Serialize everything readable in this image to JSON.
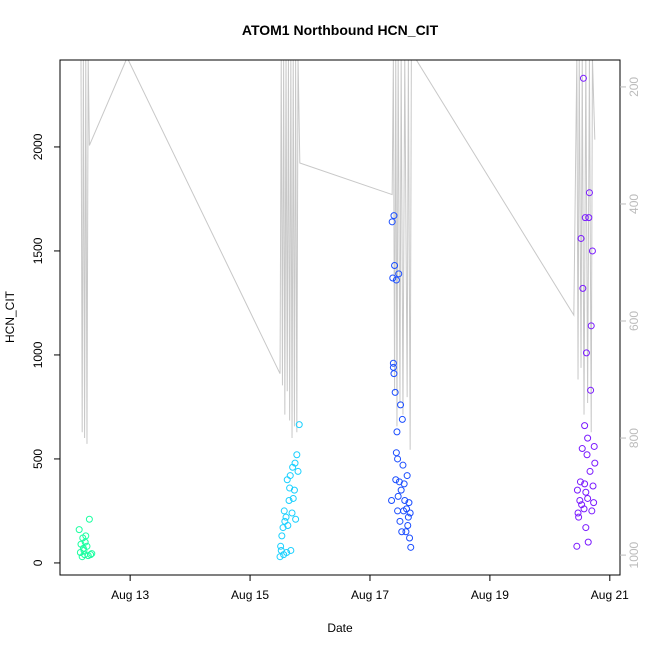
{
  "chart_data": {
    "type": "scatter",
    "title": "ATOM1 Northbound HCN_CIT",
    "x_label": "Date",
    "y_label": "HCN_CIT",
    "xlim": [
      11.83,
      21.17
    ],
    "xticks": [
      {
        "value": 13,
        "label": "Aug 13"
      },
      {
        "value": 15,
        "label": "Aug 15"
      },
      {
        "value": 17,
        "label": "Aug 17"
      },
      {
        "value": 19,
        "label": "Aug 19"
      },
      {
        "value": 21,
        "label": "Aug 21"
      }
    ],
    "ylim": [
      -58,
      2418
    ],
    "yticks": [
      0,
      500,
      1000,
      1500,
      2000
    ],
    "y2lim": [
      1034,
      154
    ],
    "y2ticks": [
      200,
      400,
      600,
      800,
      1000
    ],
    "line": {
      "color": "#c8c8c8",
      "axis": "y2",
      "x": [
        12.18,
        12.2,
        12.22,
        12.24,
        12.26,
        12.28,
        12.3,
        12.32,
        12.95,
        15.5,
        15.52,
        15.54,
        15.56,
        15.58,
        15.6,
        15.62,
        15.64,
        15.66,
        15.68,
        15.7,
        15.72,
        15.74,
        15.76,
        15.78,
        15.8,
        15.83,
        17.37,
        17.39,
        17.41,
        17.43,
        17.45,
        17.47,
        17.5,
        17.52,
        17.55,
        17.58,
        17.62,
        17.64,
        17.67,
        17.69,
        17.75,
        20.4,
        20.45,
        20.47,
        20.49,
        20.52,
        20.54,
        20.57,
        20.6,
        20.63,
        20.66,
        20.69,
        20.71,
        20.75
      ],
      "values": [
        150,
        790,
        150,
        800,
        150,
        810,
        150,
        300,
        150,
        690,
        150,
        710,
        150,
        760,
        150,
        720,
        150,
        770,
        150,
        800,
        150,
        780,
        150,
        790,
        150,
        330,
        384,
        150,
        720,
        150,
        780,
        150,
        740,
        150,
        760,
        150,
        730,
        150,
        820,
        150,
        150,
        590,
        150,
        700,
        150,
        680,
        150,
        760,
        150,
        740,
        150,
        790,
        150,
        290
      ]
    },
    "series": [
      {
        "color": "#1affa0",
        "x": [
          12.15,
          12.17,
          12.18,
          12.2,
          12.21,
          12.22,
          12.23,
          12.24,
          12.25,
          12.26,
          12.28,
          12.3,
          12.32,
          12.34,
          12.36
        ],
        "values": [
          160,
          50,
          90,
          30,
          120,
          70,
          60,
          40,
          100,
          130,
          80,
          35,
          210,
          40,
          45
        ]
      },
      {
        "color": "#1ad0ff",
        "x": [
          15.5,
          15.51,
          15.52,
          15.53,
          15.55,
          15.56,
          15.57,
          15.58,
          15.6,
          15.61,
          15.62,
          15.63,
          15.65,
          15.66,
          15.67,
          15.68,
          15.7,
          15.71,
          15.72,
          15.74,
          15.75,
          15.76,
          15.78,
          15.8,
          15.82
        ],
        "values": [
          30,
          80,
          60,
          130,
          170,
          40,
          250,
          200,
          220,
          50,
          400,
          180,
          300,
          360,
          420,
          60,
          240,
          460,
          310,
          350,
          480,
          210,
          520,
          440,
          665
        ]
      },
      {
        "color": "#1a4dff",
        "x": [
          17.36,
          17.37,
          17.38,
          17.39,
          17.4,
          17.41,
          17.42,
          17.43,
          17.44,
          17.45,
          17.46,
          17.47,
          17.48,
          17.49,
          17.5,
          17.51,
          17.52,
          17.53,
          17.54,
          17.55,
          17.56,
          17.57,
          17.58,
          17.6,
          17.61,
          17.62,
          17.63,
          17.64,
          17.65,
          17.66,
          17.67,
          17.68,
          17.39,
          17.4,
          17.44,
          17.46
        ],
        "values": [
          300,
          1640,
          1370,
          960,
          1670,
          1430,
          820,
          400,
          1360,
          630,
          250,
          320,
          1390,
          390,
          200,
          760,
          350,
          150,
          690,
          470,
          250,
          380,
          300,
          150,
          260,
          420,
          180,
          220,
          290,
          120,
          240,
          75,
          940,
          910,
          530,
          500
        ]
      },
      {
        "color": "#7a1aff",
        "x": [
          20.45,
          20.46,
          20.47,
          20.48,
          20.5,
          20.51,
          20.52,
          20.53,
          20.54,
          20.55,
          20.56,
          20.57,
          20.58,
          20.59,
          20.6,
          20.61,
          20.62,
          20.63,
          20.64,
          20.65,
          20.66,
          20.67,
          20.68,
          20.69,
          20.7,
          20.71,
          20.72,
          20.73,
          20.74,
          20.75,
          20.58,
          20.6,
          20.63
        ],
        "values": [
          80,
          350,
          240,
          220,
          300,
          390,
          1560,
          280,
          550,
          1320,
          2330,
          260,
          660,
          1660,
          170,
          1010,
          520,
          310,
          100,
          1660,
          1780,
          440,
          830,
          1140,
          250,
          1500,
          370,
          290,
          560,
          480,
          380,
          340,
          600
        ]
      }
    ]
  }
}
